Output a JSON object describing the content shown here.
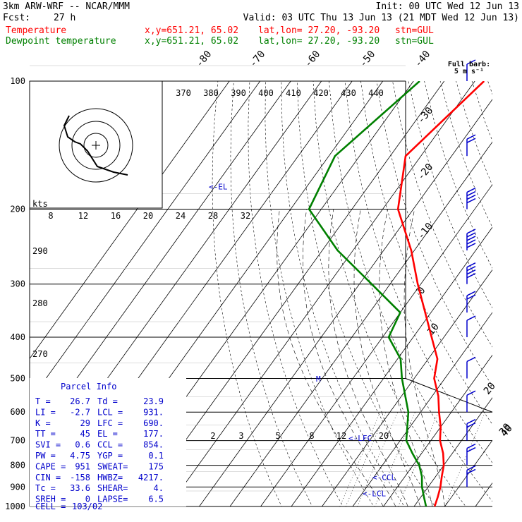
{
  "header": {
    "model": "3km ARW-WRF -- NCAR/MMM",
    "init": "Init: 00 UTC Wed 12 Jun 13",
    "fcst_label": "Fcst:",
    "fcst_value": "27 h",
    "valid": "Valid: 03 UTC Thu 13 Jun 13 (21 MDT Wed 12 Jun 13)",
    "temp_legend": "Temperature",
    "dew_legend": "Dewpoint temperature",
    "xy": "x,y=651.21, 65.02",
    "latlon": "lat,lon= 27.20, -93.20",
    "stn": "stn=GUL"
  },
  "colors": {
    "temperature": "#ff0000",
    "dewpoint": "#008000",
    "info": "#0000cc",
    "isotherm": "#000000"
  },
  "full_barb": "Full barb:",
  "full_barb_unit": "5 m s⁻¹",
  "chart_data": {
    "type": "line",
    "yscale": "log",
    "ylim": [
      1000,
      100
    ],
    "pressure_levels": [
      100,
      200,
      300,
      400,
      500,
      600,
      700,
      800,
      900,
      1000
    ],
    "isotherm_labels": [
      "-80",
      "-70",
      "-60",
      "-50",
      "-40",
      "-30",
      "-20",
      "-10",
      "0",
      "10",
      "20",
      "30",
      "40"
    ],
    "theta_labels_top": [
      "370",
      "380",
      "390",
      "400",
      "410",
      "420",
      "430",
      "440"
    ],
    "theta_labels_left": [
      "290",
      "280",
      "270"
    ],
    "mixing_ratio_labels": [
      "2",
      "3",
      "5",
      "8",
      "12",
      "20"
    ],
    "hodograph_ring_labels": [
      "8",
      "12",
      "16",
      "20",
      "24",
      "28",
      "32"
    ],
    "hodograph_unit": "kts",
    "series": [
      {
        "name": "Temperature",
        "points": [
          [
            100,
            -57
          ],
          [
            150,
            -65
          ],
          [
            200,
            -55
          ],
          [
            250,
            -41
          ],
          [
            300,
            -31
          ],
          [
            400,
            -14
          ],
          [
            450,
            -7
          ],
          [
            500,
            -3.5
          ],
          [
            550,
            2
          ],
          [
            600,
            6
          ],
          [
            650,
            10
          ],
          [
            700,
            13
          ],
          [
            750,
            17
          ],
          [
            800,
            20
          ],
          [
            850,
            22
          ],
          [
            900,
            24
          ],
          [
            950,
            25.5
          ],
          [
            1000,
            26.7
          ]
        ]
      },
      {
        "name": "Dewpoint temperature",
        "points": [
          [
            100,
            -78
          ],
          [
            150,
            -88
          ],
          [
            200,
            -84
          ],
          [
            250,
            -65
          ],
          [
            300,
            -46
          ],
          [
            350,
            -30
          ],
          [
            400,
            -28
          ],
          [
            450,
            -19
          ],
          [
            500,
            -14
          ],
          [
            600,
            -4
          ],
          [
            700,
            2
          ],
          [
            750,
            7
          ],
          [
            800,
            12
          ],
          [
            850,
            15.5
          ],
          [
            900,
            18
          ],
          [
            950,
            21
          ],
          [
            1000,
            23.9
          ]
        ]
      }
    ],
    "annotations": [
      {
        "text": "<-EL",
        "p": 177
      },
      {
        "text": "<-LFC",
        "p": 690
      },
      {
        "text": "<-CCL",
        "p": 854
      },
      {
        "text": "<-LCL",
        "p": 931
      }
    ],
    "freezing_level_marker": "M",
    "wind_barbs": [
      {
        "p": 100,
        "speed_ms": 5
      },
      {
        "p": 150,
        "speed_ms": 10
      },
      {
        "p": 200,
        "speed_ms": 20
      },
      {
        "p": 250,
        "speed_ms": 25
      },
      {
        "p": 300,
        "speed_ms": 20
      },
      {
        "p": 350,
        "speed_ms": 10
      },
      {
        "p": 400,
        "speed_ms": 5
      },
      {
        "p": 500,
        "speed_ms": 5
      },
      {
        "p": 600,
        "speed_ms": 5
      },
      {
        "p": 700,
        "speed_ms": 10
      },
      {
        "p": 800,
        "speed_ms": 10
      },
      {
        "p": 900,
        "speed_ms": 10
      }
    ],
    "hodograph_points": [
      [
        -38,
        -42
      ],
      [
        -45,
        -28
      ],
      [
        -40,
        -12
      ],
      [
        -30,
        -5
      ],
      [
        -22,
        -2
      ],
      [
        -12,
        8
      ],
      [
        2,
        30
      ],
      [
        25,
        38
      ],
      [
        45,
        42
      ]
    ]
  },
  "parcel_info": {
    "title": "Parcel Info",
    "rows": [
      [
        "T   =",
        "26.7",
        "Td  =",
        "23.9"
      ],
      [
        "LI  =",
        "-2.7",
        "LCL =",
        "931."
      ],
      [
        "K   =",
        "29",
        "LFC =",
        "690."
      ],
      [
        "TT  =",
        "45",
        "EL  =",
        "177."
      ],
      [
        "SVI =",
        "0.6",
        "CCL =",
        "854."
      ],
      [
        "PW  =",
        "4.75",
        "YGP =",
        "0.1"
      ],
      [
        "CAPE =",
        "951",
        "SWEAT=",
        "175"
      ],
      [
        "CIN  =",
        "-158",
        "HWBZ=",
        "4217."
      ],
      [
        "Tc  =",
        "33.6",
        "SHEAR=",
        "4."
      ],
      [
        "SREH =",
        "0",
        "LAPSE=",
        "6.5"
      ]
    ],
    "cell_label": "CELL =",
    "cell_value": "103/02"
  }
}
